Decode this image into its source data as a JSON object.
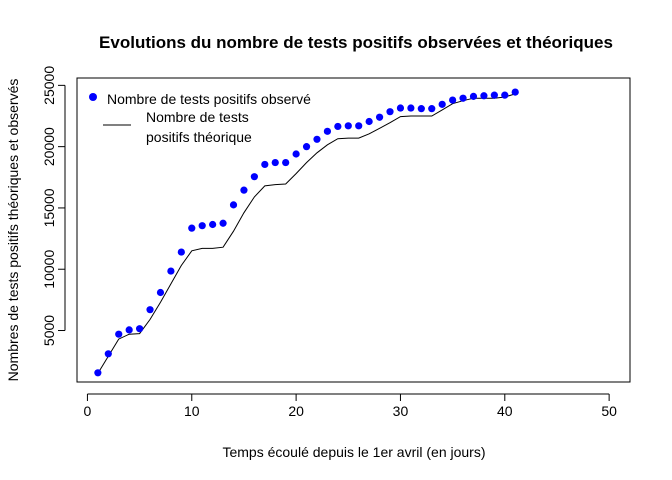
{
  "chart_data": {
    "type": "scatter",
    "title": "Evolutions du nombre de tests positifs observées et théoriques",
    "xlabel": "Temps écoulé depuis le 1er avril (en jours)",
    "ylabel": "Nombres de tests positifs théoriques et observés",
    "xlim": [
      -1,
      52
    ],
    "ylim": [
      800,
      25600
    ],
    "x_ticks": [
      0,
      10,
      20,
      30,
      40,
      50
    ],
    "y_ticks": [
      5000,
      10000,
      15000,
      20000,
      25000
    ],
    "legend_position": "top-left",
    "series": [
      {
        "name": "Nombre de tests positifs observé",
        "style": "points",
        "color": "#0000ff",
        "x": [
          1,
          2,
          3,
          4,
          5,
          6,
          7,
          8,
          9,
          10,
          11,
          12,
          13,
          14,
          15,
          16,
          17,
          18,
          19,
          20,
          21,
          22,
          23,
          24,
          25,
          26,
          27,
          28,
          29,
          30,
          31,
          32,
          33,
          34,
          35,
          36,
          37,
          38,
          39,
          40,
          41
        ],
        "y": [
          1550,
          3100,
          4700,
          5050,
          5150,
          6700,
          8100,
          9850,
          11400,
          13350,
          13550,
          13650,
          13750,
          15250,
          16450,
          17550,
          18550,
          18700,
          18700,
          19400,
          20000,
          20600,
          21250,
          21650,
          21700,
          21700,
          22050,
          22400,
          22850,
          23150,
          23150,
          23100,
          23100,
          23450,
          23800,
          23950,
          24100,
          24150,
          24200,
          24200,
          24450
        ]
      },
      {
        "name": "Nombre de tests positifs théorique",
        "legend_lines": [
          "Nombre de tests",
          "positifs théorique"
        ],
        "style": "line",
        "color": "#000000",
        "x": [
          1,
          2,
          3,
          4,
          5,
          6,
          7,
          8,
          9,
          10,
          11,
          12,
          13,
          14,
          15,
          16,
          17,
          18,
          19,
          20,
          21,
          22,
          23,
          24,
          25,
          26,
          27,
          28,
          29,
          30,
          31,
          32,
          33,
          34,
          35,
          36,
          37,
          38,
          39,
          40,
          41
        ],
        "y": [
          1500,
          2900,
          4300,
          4700,
          4750,
          5900,
          7300,
          8800,
          10300,
          11500,
          11700,
          11700,
          11800,
          13100,
          14600,
          15900,
          16800,
          16900,
          16950,
          17800,
          18700,
          19500,
          20150,
          20650,
          20700,
          20700,
          21050,
          21500,
          21950,
          22450,
          22500,
          22500,
          22500,
          23000,
          23500,
          23750,
          23950,
          23950,
          23950,
          24050,
          24300
        ]
      }
    ]
  }
}
